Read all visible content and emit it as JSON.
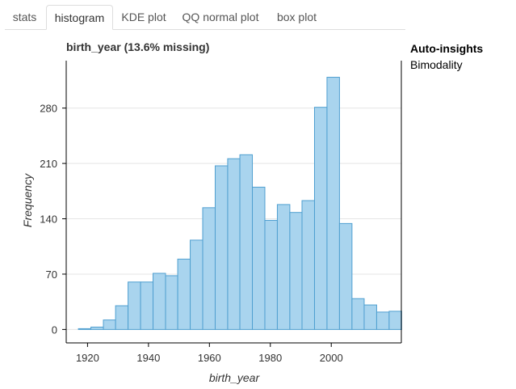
{
  "tabs": [
    {
      "label": "stats",
      "active": false
    },
    {
      "label": "histogram",
      "active": true
    },
    {
      "label": "KDE plot",
      "active": false
    },
    {
      "label": "QQ normal plot",
      "active": false
    },
    {
      "label": "box plot",
      "active": false
    }
  ],
  "chart_title": "birth_year (13.6% missing)",
  "insights": {
    "title": "Auto-insights",
    "items": [
      "Bimodality"
    ]
  },
  "chart_data": {
    "type": "bar",
    "xlabel": "birth_year",
    "ylabel": "Frequency",
    "xlim": [
      1913,
      2023
    ],
    "ylim": [
      -17,
      340
    ],
    "xticks": [
      1920,
      1940,
      1960,
      1980,
      2000
    ],
    "yticks": [
      0,
      70,
      140,
      210,
      280
    ],
    "grid": true,
    "bar_color": "#a9d4ee",
    "edge_color": "#4f9fd0",
    "bins": [
      {
        "x0": 1917.0,
        "x1": 1921.1,
        "count": 1
      },
      {
        "x0": 1921.1,
        "x1": 1925.2,
        "count": 3
      },
      {
        "x0": 1925.2,
        "x1": 1929.2,
        "count": 12
      },
      {
        "x0": 1929.2,
        "x1": 1933.3,
        "count": 30
      },
      {
        "x0": 1933.3,
        "x1": 1937.4,
        "count": 60
      },
      {
        "x0": 1937.4,
        "x1": 1941.5,
        "count": 60
      },
      {
        "x0": 1941.5,
        "x1": 1945.6,
        "count": 71
      },
      {
        "x0": 1945.6,
        "x1": 1949.6,
        "count": 68
      },
      {
        "x0": 1949.6,
        "x1": 1953.7,
        "count": 89
      },
      {
        "x0": 1953.7,
        "x1": 1957.8,
        "count": 113
      },
      {
        "x0": 1957.8,
        "x1": 1961.9,
        "count": 154
      },
      {
        "x0": 1961.9,
        "x1": 1966.0,
        "count": 207
      },
      {
        "x0": 1966.0,
        "x1": 1970.0,
        "count": 216
      },
      {
        "x0": 1970.0,
        "x1": 1974.1,
        "count": 221
      },
      {
        "x0": 1974.1,
        "x1": 1978.2,
        "count": 180
      },
      {
        "x0": 1978.2,
        "x1": 1982.3,
        "count": 138
      },
      {
        "x0": 1982.3,
        "x1": 1986.4,
        "count": 158
      },
      {
        "x0": 1986.4,
        "x1": 1990.4,
        "count": 148
      },
      {
        "x0": 1990.4,
        "x1": 1994.5,
        "count": 163
      },
      {
        "x0": 1994.5,
        "x1": 1998.6,
        "count": 281
      },
      {
        "x0": 1998.6,
        "x1": 2002.7,
        "count": 319
      },
      {
        "x0": 2002.7,
        "x1": 2006.8,
        "count": 134
      },
      {
        "x0": 2006.8,
        "x1": 2010.8,
        "count": 39
      },
      {
        "x0": 2010.8,
        "x1": 2014.9,
        "count": 31
      },
      {
        "x0": 2014.9,
        "x1": 2019.0,
        "count": 22
      },
      {
        "x0": 2019.0,
        "x1": 2023.1,
        "count": 23
      }
    ]
  }
}
